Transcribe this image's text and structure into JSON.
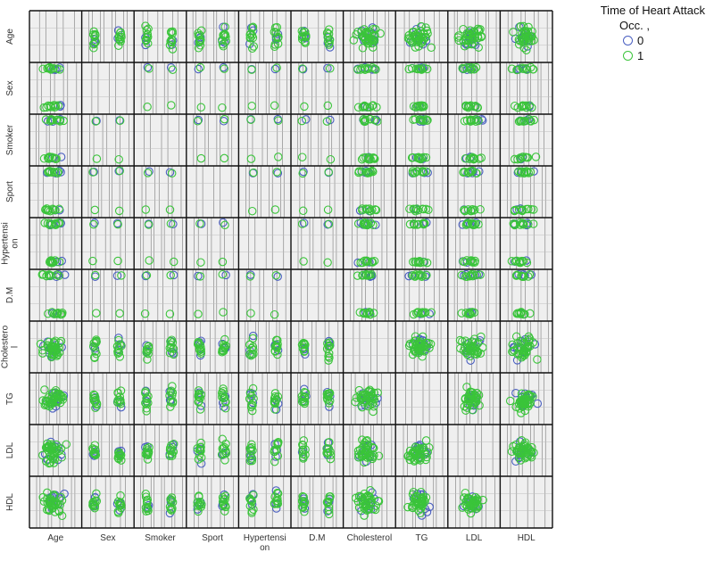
{
  "legend": {
    "title": "Time of Heart Attack",
    "subtitle": "Occ. ,",
    "items": [
      {
        "label": "0",
        "color": "#4a5fc1"
      },
      {
        "label": "1",
        "color": "#3ac43a"
      }
    ]
  },
  "chart_data": {
    "type": "scatter",
    "subtype": "scatterplot-matrix",
    "variables": [
      {
        "name": "Age",
        "label_lines": [
          "Age"
        ],
        "kind": "continuous"
      },
      {
        "name": "Sex",
        "label_lines": [
          "Sex"
        ],
        "kind": "binary"
      },
      {
        "name": "Smoker",
        "label_lines": [
          "Smoker"
        ],
        "kind": "binary"
      },
      {
        "name": "Sport",
        "label_lines": [
          "Sport"
        ],
        "kind": "binary"
      },
      {
        "name": "Hypertension",
        "label_lines": [
          "Hypertensi",
          "on"
        ],
        "kind": "binary"
      },
      {
        "name": "D.M",
        "label_lines": [
          "D.M"
        ],
        "kind": "binary"
      },
      {
        "name": "Cholesterol",
        "label_lines": [
          "Cholestero",
          "l"
        ],
        "x_label_lines": [
          "Cholesterol"
        ],
        "kind": "continuous"
      },
      {
        "name": "TG",
        "label_lines": [
          "TG"
        ],
        "kind": "continuous"
      },
      {
        "name": "LDL",
        "label_lines": [
          "LDL"
        ],
        "kind": "continuous"
      },
      {
        "name": "HDL",
        "label_lines": [
          "HDL"
        ],
        "kind": "continuous"
      }
    ],
    "series": [
      {
        "name": "0",
        "color": "#4a5fc1"
      },
      {
        "name": "1",
        "color": "#3ac43a"
      }
    ],
    "grid": true,
    "diagonal": "empty",
    "legend_position": "top-right"
  }
}
